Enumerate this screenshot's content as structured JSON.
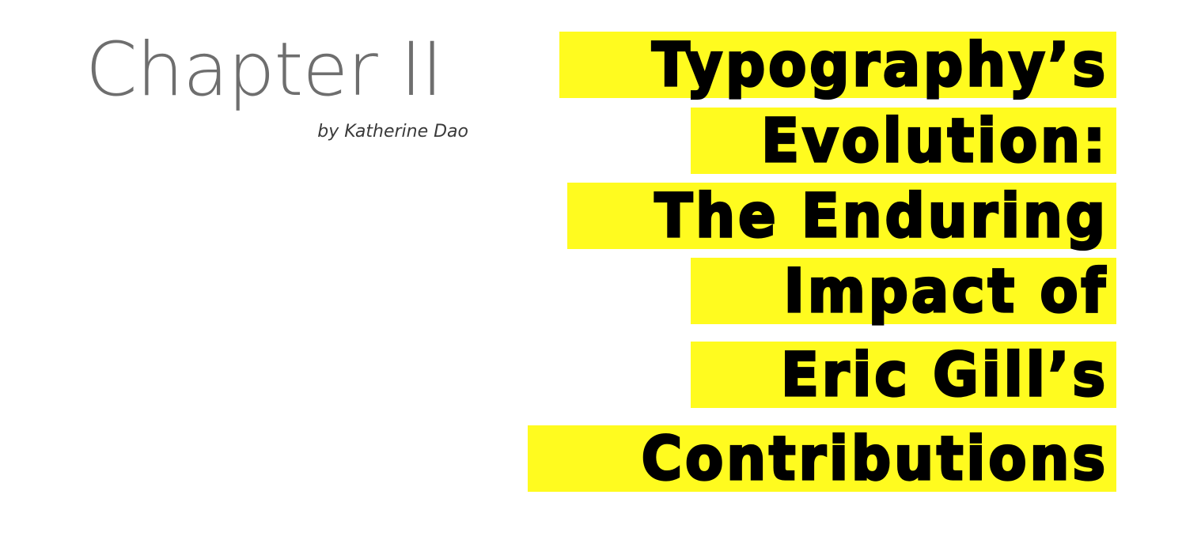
{
  "chapter": {
    "title": "Chapter II",
    "byline": "by Katherine Dao"
  },
  "headline": {
    "lines": [
      "Typography’s",
      "Evolution:",
      "The Enduring",
      "Impact of",
      "Eric Gill’s",
      "Contributions"
    ],
    "highlight_color": "#fffb1f",
    "text_color": "#000000"
  }
}
